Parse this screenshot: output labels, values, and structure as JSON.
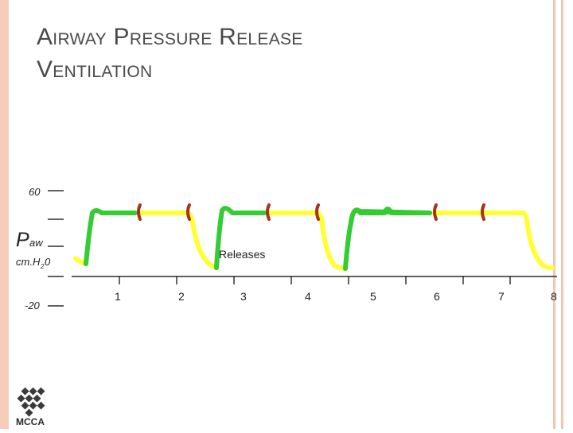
{
  "slide": {
    "title_line1": "Airway Pressure Release",
    "title_line2": "Ventilation"
  },
  "chart_data": {
    "type": "line",
    "ytick_labels": [
      "60",
      "-20"
    ],
    "ylabel_main": "P",
    "ylabel_sub": "aw",
    "yunit_pre": "cm.H",
    "yunit_sub": "2",
    "yunit_post": "0",
    "x_ticks": [
      "1",
      "2",
      "3",
      "4",
      "5",
      "6",
      "7",
      "8"
    ],
    "annotation": "Releases",
    "series_colors": {
      "spontaneous": "#33cc33",
      "release": "#ffff33",
      "effort": "#a83217",
      "axis": "#000000"
    }
  },
  "logo": {
    "text": "MCCA",
    "color": "#2a2a2a"
  }
}
